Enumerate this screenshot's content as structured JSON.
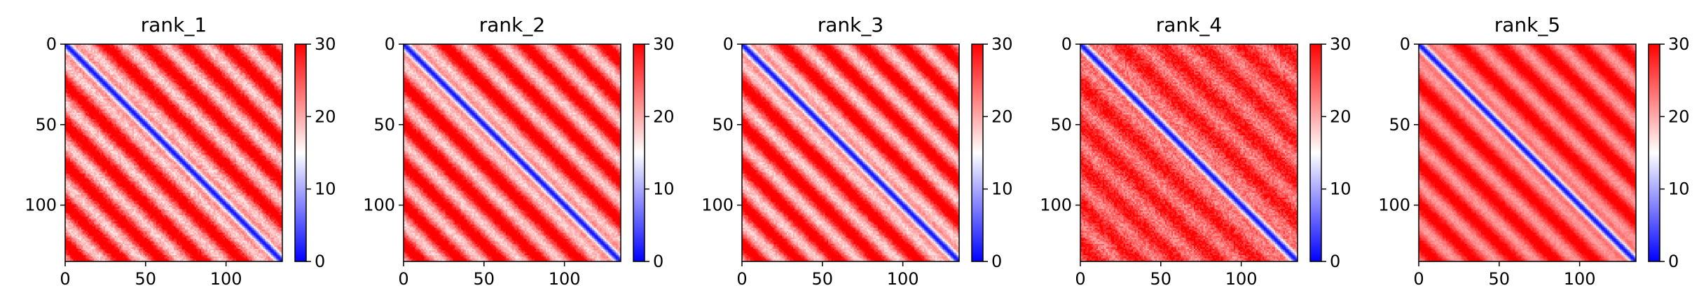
{
  "chart_data": [
    {
      "type": "heatmap",
      "title": "rank_1",
      "matrix_size": 136,
      "xticks": [
        0,
        50,
        100
      ],
      "yticks": [
        0,
        50,
        100
      ],
      "xlim": [
        0,
        135
      ],
      "ylim": [
        135,
        0
      ],
      "colorbar": {
        "ticks": [
          0,
          10,
          20,
          30
        ],
        "range": [
          0,
          30
        ],
        "colormap": "bwr",
        "colors": [
          "#0000ff",
          "#ffffff",
          "#ff0000"
        ]
      },
      "pattern": {
        "period": 25,
        "band_amplitude": 7,
        "diagonal_width": 3.2,
        "offdiag_level": 25,
        "noise": 2.2
      }
    },
    {
      "type": "heatmap",
      "title": "rank_2",
      "matrix_size": 136,
      "xticks": [
        0,
        50,
        100
      ],
      "yticks": [
        0,
        50,
        100
      ],
      "xlim": [
        0,
        135
      ],
      "ylim": [
        135,
        0
      ],
      "colorbar": {
        "ticks": [
          0,
          10,
          20,
          30
        ],
        "range": [
          0,
          30
        ],
        "colormap": "bwr",
        "colors": [
          "#0000ff",
          "#ffffff",
          "#ff0000"
        ]
      },
      "pattern": {
        "period": 25,
        "band_amplitude": 7,
        "diagonal_width": 3.2,
        "offdiag_level": 25,
        "noise": 1.8
      }
    },
    {
      "type": "heatmap",
      "title": "rank_3",
      "matrix_size": 136,
      "xticks": [
        0,
        50,
        100
      ],
      "yticks": [
        0,
        50,
        100
      ],
      "xlim": [
        0,
        135
      ],
      "ylim": [
        135,
        0
      ],
      "colorbar": {
        "ticks": [
          0,
          10,
          20,
          30
        ],
        "range": [
          0,
          30
        ],
        "colormap": "bwr",
        "colors": [
          "#0000ff",
          "#ffffff",
          "#ff0000"
        ]
      },
      "pattern": {
        "period": 25,
        "band_amplitude": 7,
        "diagonal_width": 3.2,
        "offdiag_level": 25,
        "noise": 1.8
      }
    },
    {
      "type": "heatmap",
      "title": "rank_4",
      "matrix_size": 136,
      "xticks": [
        0,
        50,
        100
      ],
      "yticks": [
        0,
        50,
        100
      ],
      "xlim": [
        0,
        135
      ],
      "ylim": [
        135,
        0
      ],
      "colorbar": {
        "ticks": [
          0,
          10,
          20,
          30
        ],
        "range": [
          0,
          30
        ],
        "colormap": "bwr",
        "colors": [
          "#0000ff",
          "#ffffff",
          "#ff0000"
        ]
      },
      "pattern": {
        "period": 25,
        "band_amplitude": 3.5,
        "diagonal_width": 3.0,
        "offdiag_level": 26,
        "noise": 2.8
      }
    },
    {
      "type": "heatmap",
      "title": "rank_5",
      "matrix_size": 136,
      "xticks": [
        0,
        50,
        100
      ],
      "yticks": [
        0,
        50,
        100
      ],
      "xlim": [
        0,
        135
      ],
      "ylim": [
        135,
        0
      ],
      "colorbar": {
        "ticks": [
          0,
          10,
          20,
          30
        ],
        "range": [
          0,
          30
        ],
        "colormap": "bwr",
        "colors": [
          "#0000ff",
          "#ffffff",
          "#ff0000"
        ]
      },
      "pattern": {
        "period": 25,
        "band_amplitude": 5,
        "diagonal_width": 3.0,
        "offdiag_level": 26,
        "noise": 1.2
      }
    }
  ]
}
